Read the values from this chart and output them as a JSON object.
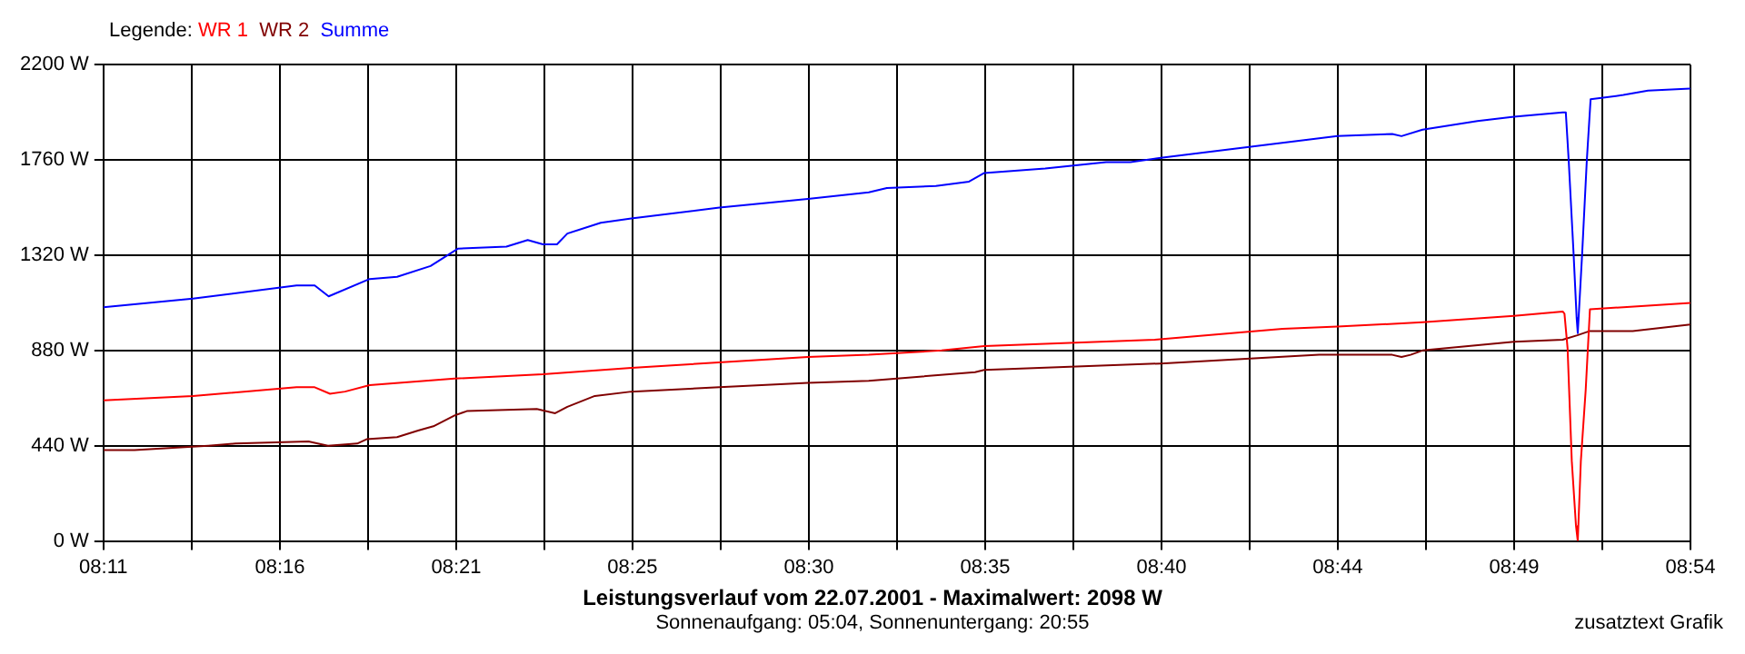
{
  "chart_data": {
    "type": "line",
    "title": "Leistungsverlauf vom 22.07.2001 - Maximalwert: 2098 W",
    "subtitle": "Sonnenaufgang: 05:04, Sonnenuntergang: 20:55",
    "legend_title": "Legende:",
    "legend": "top left",
    "grid": true,
    "marker": "none",
    "annotations": [
      "zusatztext Grafik"
    ],
    "xlim": [
      8.1833,
      8.9
    ],
    "xticks": [
      {
        "value": 8.1833,
        "label": "08:11"
      },
      {
        "value": 8.2231,
        "label": null
      },
      {
        "value": 8.263,
        "label": "08:16"
      },
      {
        "value": 8.3028,
        "label": null
      },
      {
        "value": 8.3426,
        "label": "08:21"
      },
      {
        "value": 8.3824,
        "label": null
      },
      {
        "value": 8.4222,
        "label": "08:25"
      },
      {
        "value": 8.462,
        "label": null
      },
      {
        "value": 8.5019,
        "label": "08:30"
      },
      {
        "value": 8.5417,
        "label": null
      },
      {
        "value": 8.5815,
        "label": "08:35"
      },
      {
        "value": 8.6213,
        "label": null
      },
      {
        "value": 8.6611,
        "label": "08:40"
      },
      {
        "value": 8.7009,
        "label": null
      },
      {
        "value": 8.7407,
        "label": "08:44"
      },
      {
        "value": 8.7806,
        "label": null
      },
      {
        "value": 8.8204,
        "label": "08:49"
      },
      {
        "value": 8.8602,
        "label": null
      },
      {
        "value": 8.9,
        "label": "08:54"
      }
    ],
    "ylim": [
      0,
      2200
    ],
    "yticks": [
      {
        "value": 0,
        "label": "0 W"
      },
      {
        "value": 440,
        "label": "440 W"
      },
      {
        "value": 880,
        "label": "880 W"
      },
      {
        "value": 1320,
        "label": "1320 W"
      },
      {
        "value": 1760,
        "label": "1760 W"
      },
      {
        "value": 2200,
        "label": "2200 W"
      }
    ],
    "series": [
      {
        "name": "WR 1",
        "color": "#ff0000",
        "x": [
          8.1833,
          8.2237,
          8.2705,
          8.2787,
          8.2856,
          8.2924,
          8.3035,
          8.3419,
          8.3818,
          8.4217,
          8.5014,
          8.5289,
          8.5618,
          8.5811,
          8.6581,
          8.7158,
          8.7406,
          8.779,
          8.8203,
          8.8423,
          8.8431,
          8.8445,
          8.8464,
          8.8483,
          8.8491,
          8.8505,
          8.8527,
          8.8546,
          8.8697,
          8.9
        ],
        "values": [
          650,
          670,
          710,
          710,
          680,
          690,
          720,
          750,
          770,
          800,
          850,
          860,
          880,
          900,
          930,
          980,
          990,
          1010,
          1040,
          1060,
          1050,
          890,
          370,
          70,
          0,
          370,
          700,
          1070,
          1080,
          1100
        ]
      },
      {
        "name": "WR 2",
        "color": "#800000",
        "x": [
          8.1833,
          8.1973,
          8.2306,
          8.2429,
          8.2759,
          8.2847,
          8.2979,
          8.3021,
          8.3159,
          8.3254,
          8.3323,
          8.3419,
          8.3474,
          8.379,
          8.3873,
          8.3928,
          8.4052,
          8.4217,
          8.4615,
          8.5014,
          8.5289,
          8.5769,
          8.5811,
          8.6608,
          8.7323,
          8.7653,
          8.7695,
          8.7736,
          8.779,
          8.8203,
          8.8423,
          8.8489,
          8.8546,
          8.8739,
          8.9
        ],
        "values": [
          420,
          420,
          440,
          450,
          460,
          440,
          450,
          470,
          480,
          510,
          530,
          580,
          600,
          610,
          590,
          620,
          670,
          690,
          710,
          730,
          740,
          780,
          790,
          820,
          860,
          860,
          850,
          860,
          880,
          920,
          930,
          950,
          970,
          970,
          1000
        ]
      },
      {
        "name": "Summe",
        "color": "#0000ff",
        "x": [
          8.1833,
          8.2237,
          8.2705,
          8.2787,
          8.285,
          8.3035,
          8.3159,
          8.331,
          8.3433,
          8.3653,
          8.3749,
          8.3818,
          8.3881,
          8.3928,
          8.4079,
          8.4217,
          8.4615,
          8.5014,
          8.5289,
          8.5371,
          8.5592,
          8.5742,
          8.5811,
          8.6086,
          8.6361,
          8.6471,
          8.6608,
          8.7007,
          8.7406,
          8.7653,
          8.7695,
          8.779,
          8.8038,
          8.8203,
          8.8423,
          8.8437,
          8.845,
          8.8472,
          8.8486,
          8.8491,
          8.8511,
          8.8532,
          8.8549,
          8.8697,
          8.8808,
          8.9
        ],
        "values": [
          1080,
          1120,
          1180,
          1180,
          1130,
          1210,
          1220,
          1270,
          1350,
          1360,
          1390,
          1370,
          1370,
          1420,
          1470,
          1490,
          1540,
          1580,
          1610,
          1630,
          1640,
          1660,
          1700,
          1720,
          1750,
          1750,
          1770,
          1820,
          1870,
          1880,
          1870,
          1900,
          1940,
          1960,
          1980,
          1980,
          1760,
          1330,
          1030,
          960,
          1330,
          1760,
          2040,
          2060,
          2080,
          2090
        ]
      }
    ]
  }
}
